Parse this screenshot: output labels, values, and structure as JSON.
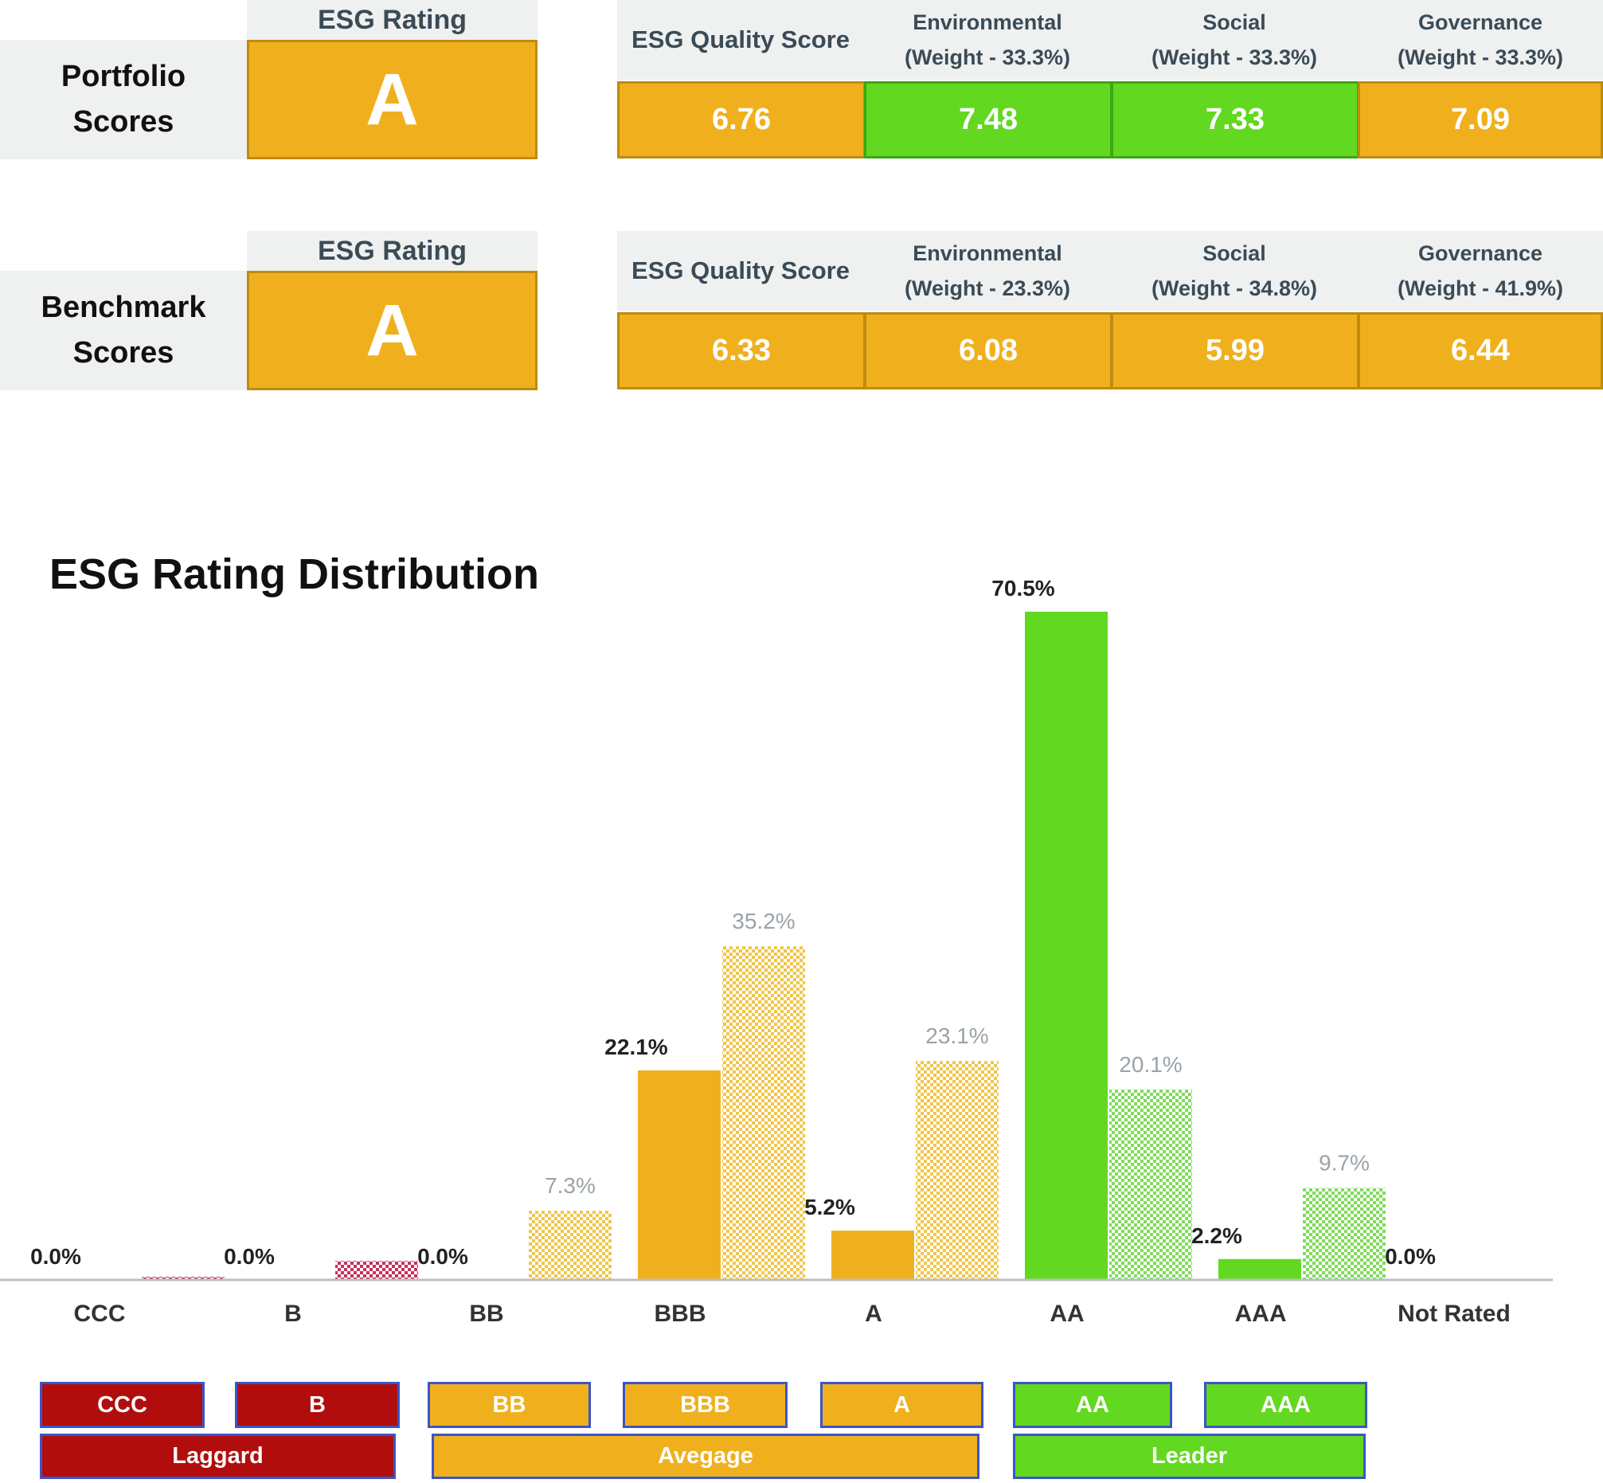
{
  "portfolio": {
    "label": "Portfolio Scores",
    "rating_header": "ESG Rating",
    "rating": "A",
    "quality_header": "ESG Quality Score",
    "env_header_1": "Environmental",
    "env_header_2": "(Weight - 33.3%)",
    "soc_header_1": "Social",
    "soc_header_2": "(Weight - 33.3%)",
    "gov_header_1": "Governance",
    "gov_header_2": "(Weight - 33.3%)",
    "quality_score": "6.76",
    "env_score": "7.48",
    "soc_score": "7.33",
    "gov_score": "7.09"
  },
  "benchmark": {
    "label": "Benchmark Scores",
    "rating_header": "ESG Rating",
    "rating": "A",
    "quality_header": "ESG Quality Score",
    "env_header_1": "Environmental",
    "env_header_2": "(Weight - 23.3%)",
    "soc_header_1": "Social",
    "soc_header_2": "(Weight - 34.8%)",
    "gov_header_1": "Governance",
    "gov_header_2": "(Weight - 41.9%)",
    "quality_score": "6.33",
    "env_score": "6.08",
    "soc_score": "5.99",
    "gov_score": "6.44"
  },
  "colors": {
    "laggard": "#b10d0d",
    "average": "#f0b01e",
    "leader": "#62d820"
  },
  "chart_data": {
    "type": "bar",
    "title": "ESG Rating Distribution",
    "categories": [
      "CCC",
      "B",
      "BB",
      "BBB",
      "A",
      "AA",
      "AAA",
      "Not Rated"
    ],
    "series": [
      {
        "values": [
          0.0,
          0.0,
          0.0,
          22.1,
          5.2,
          70.5,
          2.2,
          0.0
        ],
        "labels": [
          "0.0%",
          "0.0%",
          "0.0%",
          "22.1%",
          "5.2%",
          "70.5%",
          "2.2%",
          "0.0%"
        ]
      },
      {
        "values": [
          0.3,
          2.0,
          7.3,
          35.2,
          23.1,
          20.1,
          9.7,
          null
        ],
        "labels": [
          "",
          "",
          "7.3%",
          "35.2%",
          "23.1%",
          "20.1%",
          "9.7%",
          ""
        ]
      }
    ],
    "ylim": [
      0,
      70.5
    ],
    "grid": false
  },
  "legend": {
    "ccc": "CCC",
    "b": "B",
    "bb": "BB",
    "bbb": "BBB",
    "a": "A",
    "aa": "AA",
    "aaa": "AAA",
    "laggard": "Laggard",
    "average": "Avegage",
    "leader": "Leader"
  }
}
